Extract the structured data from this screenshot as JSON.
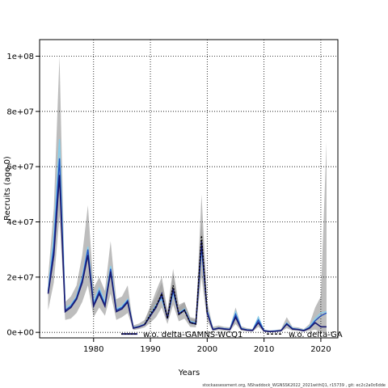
{
  "chart_data": {
    "type": "line",
    "xlabel": "Years",
    "ylabel": "Recruits (age 0)",
    "xlim": [
      1970.5,
      2023
    ],
    "ylim": [
      -2000000,
      106000000
    ],
    "x_ticks": [
      1980,
      1990,
      2000,
      2010,
      2020
    ],
    "x_tick_labels": [
      "1980",
      "1990",
      "2000",
      "2010",
      "2020"
    ],
    "y_ticks": [
      0,
      20000000,
      40000000,
      60000000,
      80000000,
      100000000
    ],
    "y_tick_labels": [
      "0e+00",
      "2e+07",
      "4e+07",
      "6e+07",
      "8e+07",
      "1e+08"
    ],
    "grid": true,
    "legend_position": "bottom",
    "legend": [
      {
        "label": "w.o. delta-GAMNS-WCQ1",
        "color": "#191970",
        "style": "solid-dotted"
      },
      {
        "label": "w.o. delta-GA",
        "color": "#000000",
        "style": "dashed"
      }
    ],
    "footer": "stockassessment.org, NShaddock_WGNSSK2022_2021withQ1, r15739 , git: ec2c2a0c6dde",
    "x": [
      1972,
      1973,
      1974,
      1975,
      1976,
      1977,
      1978,
      1979,
      1980,
      1981,
      1982,
      1983,
      1984,
      1985,
      1986,
      1987,
      1988,
      1989,
      1990,
      1991,
      1992,
      1993,
      1994,
      1995,
      1996,
      1997,
      1998,
      1999,
      2000,
      2001,
      2002,
      2003,
      2004,
      2005,
      2006,
      2007,
      2008,
      2009,
      2010,
      2011,
      2012,
      2013,
      2014,
      2015,
      2016,
      2017,
      2018,
      2019,
      2020,
      2021
    ],
    "series": [
      {
        "color": "#191970",
        "values": [
          14000000,
          28000000,
          57000000,
          7500000,
          9000000,
          12000000,
          18000000,
          28000000,
          9500000,
          14000000,
          9500000,
          22000000,
          7500000,
          8500000,
          11000000,
          1500000,
          2000000,
          2800000,
          6000000,
          9000000,
          14000000,
          5000000,
          16000000,
          6500000,
          8000000,
          3500000,
          3000000,
          33000000,
          7000000,
          1000000,
          1500000,
          1200000,
          1000000,
          5500000,
          1200000,
          800000,
          700000,
          3500000,
          500000,
          300000,
          400000,
          600000,
          3000000,
          1200000,
          1000000,
          600000,
          1500000,
          3500000,
          2000000,
          2000000
        ],
        "lower": [
          8000000,
          18000000,
          42000000,
          4500000,
          5000000,
          7000000,
          11000000,
          17000000,
          5500000,
          9000000,
          6000000,
          14000000,
          4500000,
          5500000,
          7000000,
          800000,
          1200000,
          1800000,
          3500000,
          5500000,
          9000000,
          3000000,
          10000000,
          4000000,
          5000000,
          2000000,
          1800000,
          20000000,
          4000000,
          500000,
          800000,
          600000,
          600000,
          3000000,
          600000,
          400000,
          300000,
          2000000,
          200000,
          100000,
          200000,
          300000,
          1500000,
          600000,
          500000,
          300000,
          600000,
          1000000,
          200000,
          0
        ],
        "upper": [
          20000000,
          45000000,
          100000000,
          11000000,
          13000000,
          17000000,
          28000000,
          46000000,
          16000000,
          20000000,
          15000000,
          33000000,
          12000000,
          13000000,
          17000000,
          2500000,
          3200000,
          4500000,
          9500000,
          15000000,
          20000000,
          8000000,
          23000000,
          10000000,
          11000000,
          5500000,
          5000000,
          50000000,
          11000000,
          2000000,
          2500000,
          2000000,
          1800000,
          9000000,
          2200000,
          1500000,
          1200000,
          6000000,
          1000000,
          700000,
          800000,
          1200000,
          5500000,
          2000000,
          1800000,
          1200000,
          3000000,
          9000000,
          13000000,
          69000000
        ]
      },
      {
        "color": "#87ceeb",
        "values": [
          15000000,
          35000000,
          70000000,
          9000000,
          10000000,
          13000000,
          20000000,
          31000000,
          11000000,
          16000000,
          11000000,
          24000000,
          8500000,
          9500000,
          12000000,
          1800000,
          2200000,
          3000000,
          6500000,
          10000000,
          12000000,
          5500000,
          14000000,
          7000000,
          8500000,
          4000000,
          3500000,
          30000000,
          8000000,
          1200000,
          1600000,
          1400000,
          1200000,
          7500000,
          1500000,
          1000000,
          800000,
          5500000,
          700000,
          400000,
          600000,
          700000,
          3500000,
          1500000,
          1200000,
          800000,
          2000000,
          5000000,
          7000000,
          7500000
        ]
      },
      {
        "color": "#1f4fbf",
        "values": [
          14500000,
          31000000,
          63000000,
          8000000,
          9500000,
          12500000,
          19000000,
          30000000,
          10000000,
          15000000,
          10000000,
          23000000,
          8000000,
          9000000,
          11500000,
          1600000,
          2100000,
          2900000,
          6200000,
          9500000,
          13000000,
          5200000,
          15000000,
          6800000,
          8200000,
          3700000,
          3200000,
          31000000,
          7500000,
          1100000,
          1550000,
          1300000,
          1100000,
          6500000,
          1350000,
          900000,
          750000,
          4500000,
          600000,
          350000,
          500000,
          650000,
          3200000,
          1350000,
          1100000,
          700000,
          1750000,
          4200000,
          6000000,
          7000000
        ]
      }
    ],
    "overlay_series": {
      "color": "#000000",
      "style": "dotted",
      "x": [
        1989,
        1990,
        1991,
        1992,
        1993,
        1994,
        1995,
        1996,
        1997,
        1998,
        1999,
        2000
      ],
      "values": [
        3000000,
        6500000,
        9500000,
        14000000,
        5000000,
        17000000,
        6500000,
        8000000,
        3500000,
        3000000,
        35000000,
        7000000
      ],
      "upper": [
        4500000,
        9000000,
        13000000,
        18000000,
        7000000,
        21000000,
        9000000,
        11000000,
        5000000,
        4500000,
        41000000,
        9500000
      ]
    }
  }
}
